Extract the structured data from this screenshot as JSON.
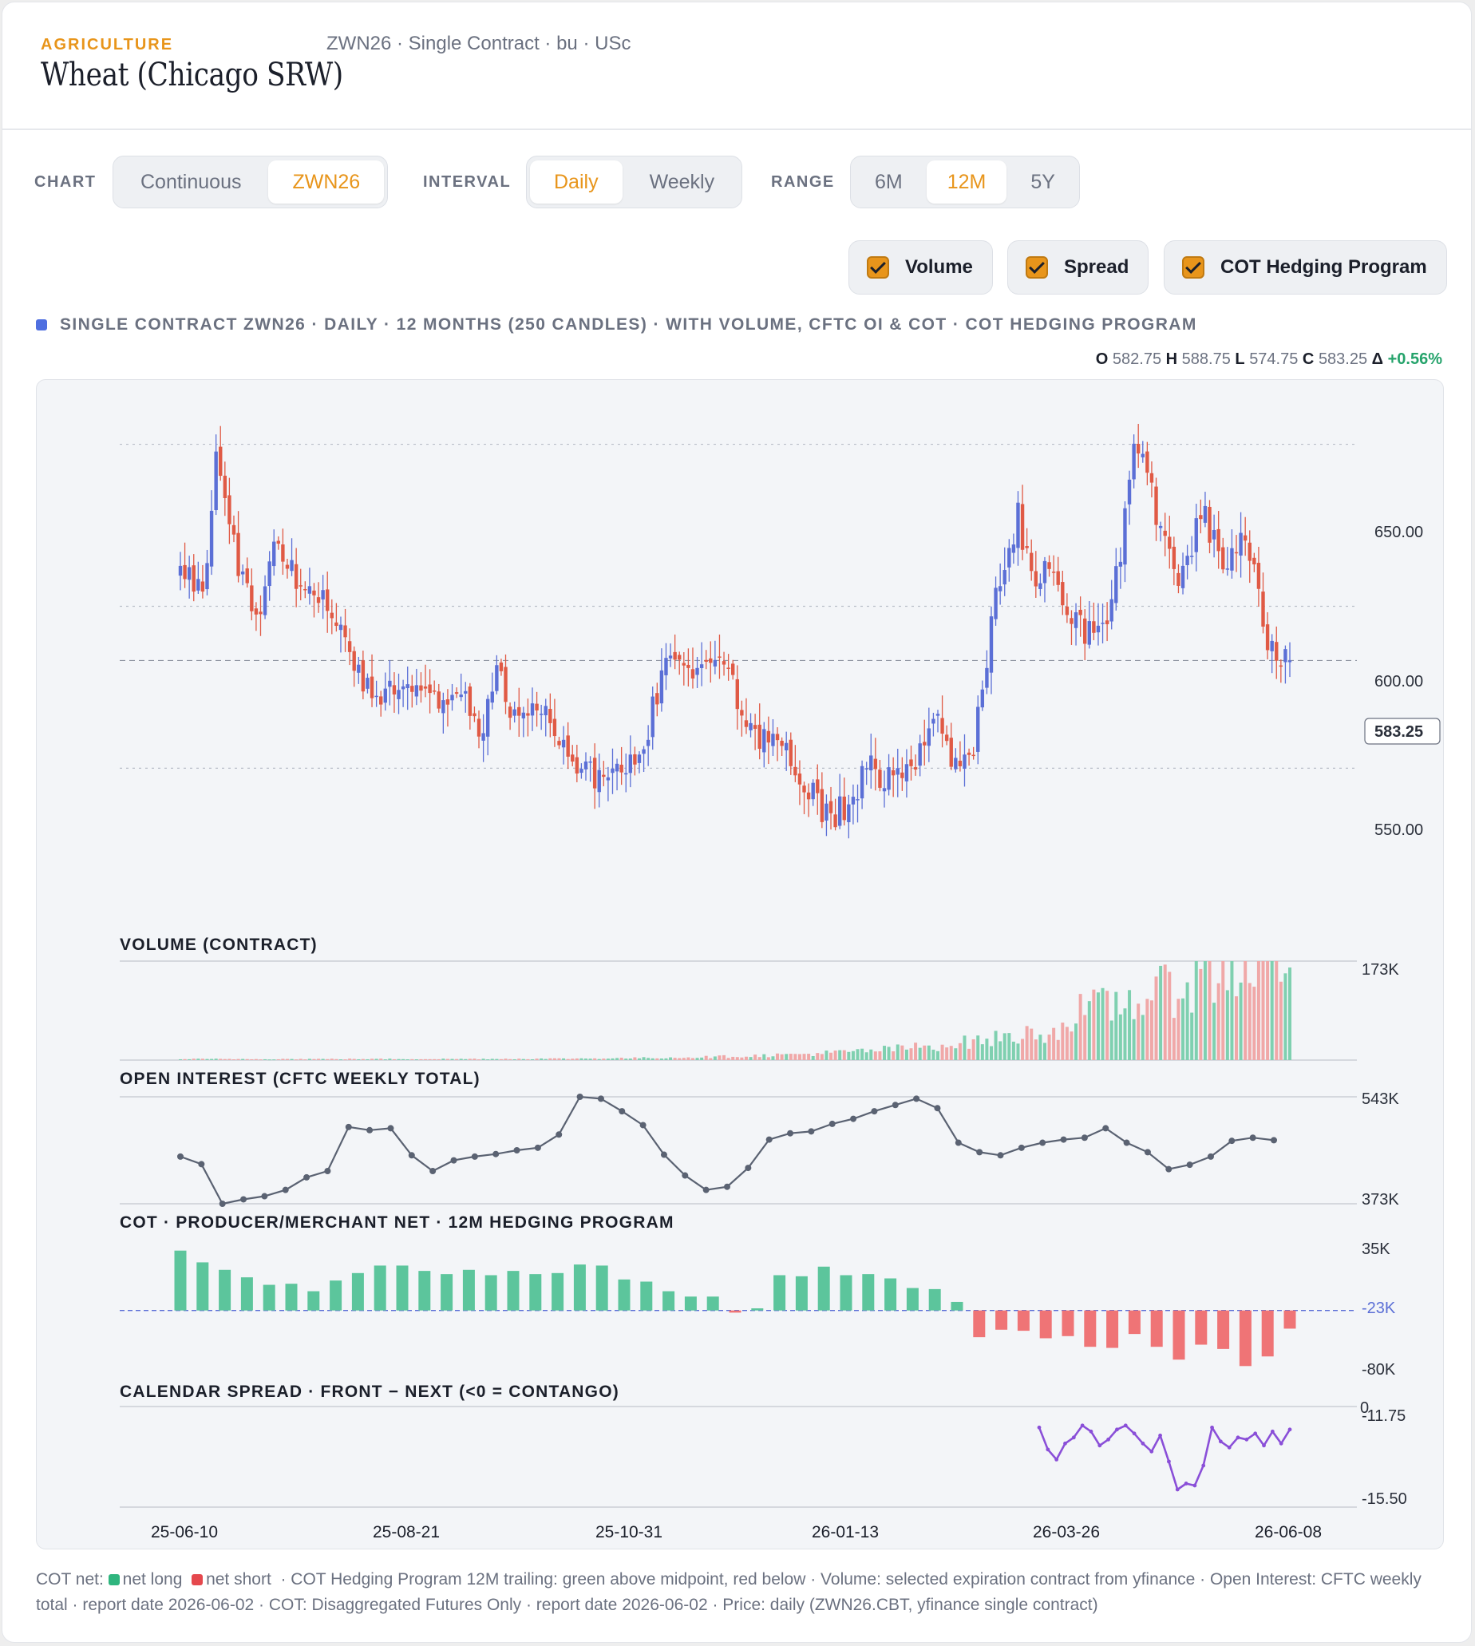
{
  "header": {
    "category": "AGRICULTURE",
    "title": "Wheat (Chicago SRW)",
    "subtitle": "ZWN26 · Single Contract · bu · USc"
  },
  "controls": {
    "chart_label": "CHART",
    "chart_options": [
      "Continuous",
      "ZWN26"
    ],
    "chart_selected": "ZWN26",
    "interval_label": "INTERVAL",
    "interval_options": [
      "Daily",
      "Weekly"
    ],
    "interval_selected": "Daily",
    "range_label": "RANGE",
    "range_options": [
      "6M",
      "12M",
      "5Y"
    ],
    "range_selected": "12M"
  },
  "toggles": [
    {
      "label": "Volume",
      "checked": true
    },
    {
      "label": "Spread",
      "checked": true
    },
    {
      "label": "COT Hedging Program",
      "checked": true
    }
  ],
  "description": "SINGLE CONTRACT ZWN26 · DAILY · 12 MONTHS (250 CANDLES) · WITH VOLUME, CFTC OI & COT · COT HEDGING PROGRAM",
  "ohlc": {
    "o_label": "O",
    "o": "582.75",
    "h_label": "H",
    "h": "588.75",
    "l_label": "L",
    "l": "574.75",
    "c_label": "C",
    "c": "583.25",
    "change_label": "Δ",
    "change": "+0.56%"
  },
  "colors": {
    "up": "#5b6fd6",
    "down": "#e05a45",
    "vol_up": "#7fd0b0",
    "vol_down": "#f0a8a8",
    "cot_long": "#5cc59c",
    "cot_short": "#ef7476",
    "oi_line": "#5a6272",
    "spread_line": "#8a4fd8",
    "accent": "#e8951b"
  },
  "chart_data": [
    {
      "type": "candlestick",
      "panel": "price",
      "y_ticks": [
        "650.00",
        "600.00",
        "550.00"
      ],
      "ylim": [
        522,
        660
      ],
      "last_price_label": "583.25",
      "last_price": 583.25,
      "x_tick_labels": [
        "25-06-10",
        "25-08-21",
        "25-10-31",
        "26-01-13",
        "26-03-26",
        "26-06-08"
      ],
      "candle_count": 250,
      "path_anchors": [
        [
          0,
          610
        ],
        [
          6,
          605
        ],
        [
          10,
          646
        ],
        [
          14,
          620
        ],
        [
          20,
          595
        ],
        [
          26,
          618
        ],
        [
          34,
          602
        ],
        [
          40,
          603
        ],
        [
          48,
          580
        ],
        [
          56,
          572
        ],
        [
          64,
          577
        ],
        [
          70,
          570
        ],
        [
          76,
          573
        ],
        [
          82,
          560
        ],
        [
          86,
          580
        ],
        [
          92,
          563
        ],
        [
          98,
          568
        ],
        [
          104,
          558
        ],
        [
          110,
          549
        ],
        [
          114,
          546
        ],
        [
          120,
          552
        ],
        [
          126,
          558
        ],
        [
          132,
          582
        ],
        [
          138,
          585
        ],
        [
          142,
          578
        ],
        [
          148,
          582
        ],
        [
          154,
          562
        ],
        [
          160,
          560
        ],
        [
          166,
          555
        ],
        [
          172,
          543
        ],
        [
          176,
          534
        ],
        [
          182,
          540
        ],
        [
          188,
          550
        ],
        [
          194,
          546
        ],
        [
          200,
          552
        ],
        [
          206,
          565
        ],
        [
          212,
          548
        ],
        [
          216,
          558
        ],
        [
          222,
          604
        ],
        [
          228,
          628
        ],
        [
          232,
          604
        ],
        [
          236,
          618
        ],
        [
          240,
          605
        ],
        [
          246,
          592
        ],
        [
          250,
          590
        ],
        [
          254,
          602
        ],
        [
          260,
          654
        ],
        [
          266,
          628
        ],
        [
          272,
          608
        ],
        [
          278,
          630
        ],
        [
          284,
          610
        ],
        [
          290,
          620
        ],
        [
          296,
          590
        ],
        [
          302,
          580
        ]
      ]
    },
    {
      "type": "bar",
      "panel": "volume",
      "label": "VOLUME (CONTRACT)",
      "y_max_label": "173K",
      "y_max": 173
    },
    {
      "type": "line",
      "panel": "open_interest",
      "label": "OPEN INTEREST (CFTC WEEKLY TOTAL)",
      "y_max_label": "543K",
      "y_min_label": "373K",
      "ylim": [
        373,
        543
      ],
      "values": [
        448,
        436,
        373,
        380,
        385,
        395,
        415,
        425,
        495,
        490,
        493,
        450,
        425,
        442,
        448,
        452,
        458,
        462,
        483,
        543,
        540,
        520,
        498,
        451,
        418,
        395,
        400,
        430,
        475,
        485,
        488,
        500,
        508,
        520,
        530,
        540,
        525,
        470,
        455,
        450,
        462,
        470,
        475,
        478,
        493,
        470,
        455,
        428,
        435,
        448,
        473,
        478,
        474
      ]
    },
    {
      "type": "bar",
      "panel": "cot",
      "label": "COT · PRODUCER/MERCHANT NET · 12M HEDGING PROGRAM",
      "y_max_label": "35K",
      "y_mid_label": "-23K",
      "y_min_label": "-80K",
      "ylim": [
        -80,
        35
      ],
      "midpoint": -23,
      "values": [
        33,
        22,
        15,
        8,
        1,
        2,
        -5,
        5,
        12,
        19,
        19,
        14,
        11,
        15,
        10,
        14,
        11,
        12,
        20,
        19,
        6,
        4,
        -5,
        -10,
        -10,
        -25,
        -21,
        10,
        9,
        18,
        10,
        11,
        7,
        -2,
        -3,
        -15,
        -48,
        -41,
        -42,
        -49,
        -47,
        -57,
        -58,
        -45,
        -57,
        -69,
        -55,
        -59,
        -75,
        -66,
        -40
      ]
    },
    {
      "type": "line",
      "panel": "spread",
      "label": "CALENDAR SPREAD · FRONT − NEXT (<0 = CONTANGO)",
      "zero_label": "0",
      "y_max_label": "-11.75",
      "y_min_label": "-15.50",
      "ylim": [
        -15.5,
        -11.75
      ],
      "start_index": 200,
      "values": [
        -12.0,
        -13.1,
        -13.6,
        -12.8,
        -12.5,
        -11.9,
        -12.2,
        -12.9,
        -12.6,
        -12.1,
        -11.9,
        -12.3,
        -12.8,
        -13.2,
        -12.4,
        -13.7,
        -15.1,
        -14.8,
        -14.9,
        -13.9,
        -12.0,
        -12.7,
        -13.0,
        -12.5,
        -12.6,
        -12.3,
        -12.9,
        -12.2,
        -12.8,
        -12.1
      ]
    }
  ],
  "footer": {
    "cot_net_label": "COT net:",
    "net_long": "net long",
    "net_short": "net short",
    "text": "· COT Hedging Program 12M trailing: green above midpoint, red below · Volume: selected expiration contract from yfinance · Open Interest: CFTC weekly total · report date 2026-06-02 · COT: Disaggregated Futures Only · report date 2026-06-02 · Price: daily (ZWN26.CBT, yfinance single contract)"
  }
}
